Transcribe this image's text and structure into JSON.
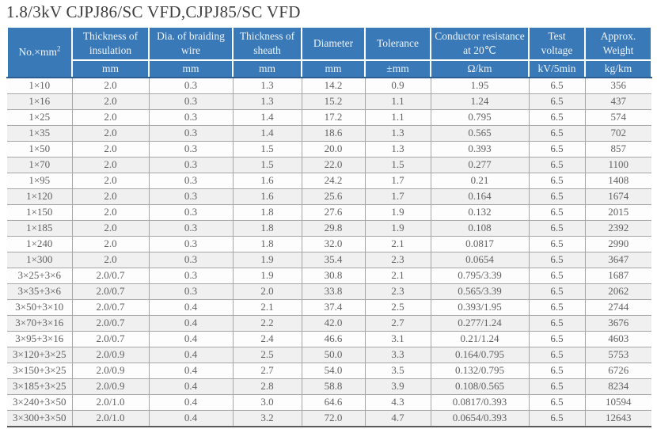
{
  "title": "1.8/3kV CJPJ86/SC VFD,CJPJ85/SC VFD",
  "colors": {
    "header_bg": "#3a79b8",
    "header_text": "#edf3f9",
    "row_alt_bg": "#f0f0f0",
    "row_bg": "#fdfdfd",
    "grid_line": "#a6a6a6",
    "body_text": "#616161"
  },
  "table": {
    "headers": [
      {
        "label": "No.×mm²",
        "unit": ""
      },
      {
        "label": "Thickness of insulation",
        "unit": "mm"
      },
      {
        "label": "Dia. of braiding wire",
        "unit": "mm"
      },
      {
        "label": "Thickness of sheath",
        "unit": "mm"
      },
      {
        "label": "Diameter",
        "unit": "mm"
      },
      {
        "label": "Tolerance",
        "unit": "±mm"
      },
      {
        "label": "Conductor resistance at 20℃",
        "unit": "Ω/km"
      },
      {
        "label": "Test voltage",
        "unit": "kV/5min"
      },
      {
        "label": "Approx. Weight",
        "unit": "kg/km"
      }
    ],
    "rows": [
      [
        "1×10",
        "2.0",
        "0.3",
        "1.3",
        "14.2",
        "0.9",
        "1.95",
        "6.5",
        "356"
      ],
      [
        "1×16",
        "2.0",
        "0.3",
        "1.3",
        "15.2",
        "1.1",
        "1.24",
        "6.5",
        "437"
      ],
      [
        "1×25",
        "2.0",
        "0.3",
        "1.4",
        "17.2",
        "1.1",
        "0.795",
        "6.5",
        "574"
      ],
      [
        "1×35",
        "2.0",
        "0.3",
        "1.4",
        "18.6",
        "1.3",
        "0.565",
        "6.5",
        "702"
      ],
      [
        "1×50",
        "2.0",
        "0.3",
        "1.5",
        "20.0",
        "1.3",
        "0.393",
        "6.5",
        "857"
      ],
      [
        "1×70",
        "2.0",
        "0.3",
        "1.5",
        "22.0",
        "1.5",
        "0.277",
        "6.5",
        "1100"
      ],
      [
        "1×95",
        "2.0",
        "0.3",
        "1.6",
        "24.2",
        "1.7",
        "0.21",
        "6.5",
        "1408"
      ],
      [
        "1×120",
        "2.0",
        "0.3",
        "1.6",
        "25.6",
        "1.7",
        "0.164",
        "6.5",
        "1674"
      ],
      [
        "1×150",
        "2.0",
        "0.3",
        "1.8",
        "27.6",
        "1.9",
        "0.132",
        "6.5",
        "2015"
      ],
      [
        "1×185",
        "2.0",
        "0.3",
        "1.8",
        "29.8",
        "1.9",
        "0.108",
        "6.5",
        "2392"
      ],
      [
        "1×240",
        "2.0",
        "0.3",
        "1.8",
        "32.0",
        "2.1",
        "0.0817",
        "6.5",
        "2990"
      ],
      [
        "1×300",
        "2.0",
        "0.3",
        "1.9",
        "35.4",
        "2.3",
        "0.0654",
        "6.5",
        "3647"
      ],
      [
        "3×25+3×6",
        "2.0/0.7",
        "0.3",
        "1.9",
        "30.8",
        "2.1",
        "0.795/3.39",
        "6.5",
        "1687"
      ],
      [
        "3×35+3×6",
        "2.0/0.7",
        "0.3",
        "2.0",
        "33.8",
        "2.3",
        "0.565/3.39",
        "6.5",
        "2062"
      ],
      [
        "3×50+3×10",
        "2.0/0.7",
        "0.4",
        "2.1",
        "37.4",
        "2.5",
        "0.393/1.95",
        "6.5",
        "2744"
      ],
      [
        "3×70+3×16",
        "2.0/0.7",
        "0.4",
        "2.2",
        "42.0",
        "2.7",
        "0.277/1.24",
        "6.5",
        "3676"
      ],
      [
        "3×95+3×16",
        "2.0/0.7",
        "0.4",
        "2.4",
        "46.6",
        "3.1",
        "0.21/1.24",
        "6.5",
        "4603"
      ],
      [
        "3×120+3×25",
        "2.0/0.9",
        "0.4",
        "2.5",
        "50.0",
        "3.3",
        "0.164/0.795",
        "6.5",
        "5753"
      ],
      [
        "3×150+3×25",
        "2.0/0.9",
        "0.4",
        "2.7",
        "54.0",
        "3.5",
        "0.132/0.795",
        "6.5",
        "6726"
      ],
      [
        "3×185+3×25",
        "2.0/0.9",
        "0.4",
        "2.8",
        "58.8",
        "3.9",
        "0.108/0.565",
        "6.5",
        "8234"
      ],
      [
        "3×240+3×50",
        "2.0/1.0",
        "0.4",
        "3.0",
        "64.6",
        "4.3",
        "0.0817/0.393",
        "6.5",
        "10594"
      ],
      [
        "3×300+3×50",
        "2.0/1.0",
        "0.4",
        "3.2",
        "72.0",
        "4.7",
        "0.0654/0.393",
        "6.5",
        "12643"
      ]
    ]
  }
}
